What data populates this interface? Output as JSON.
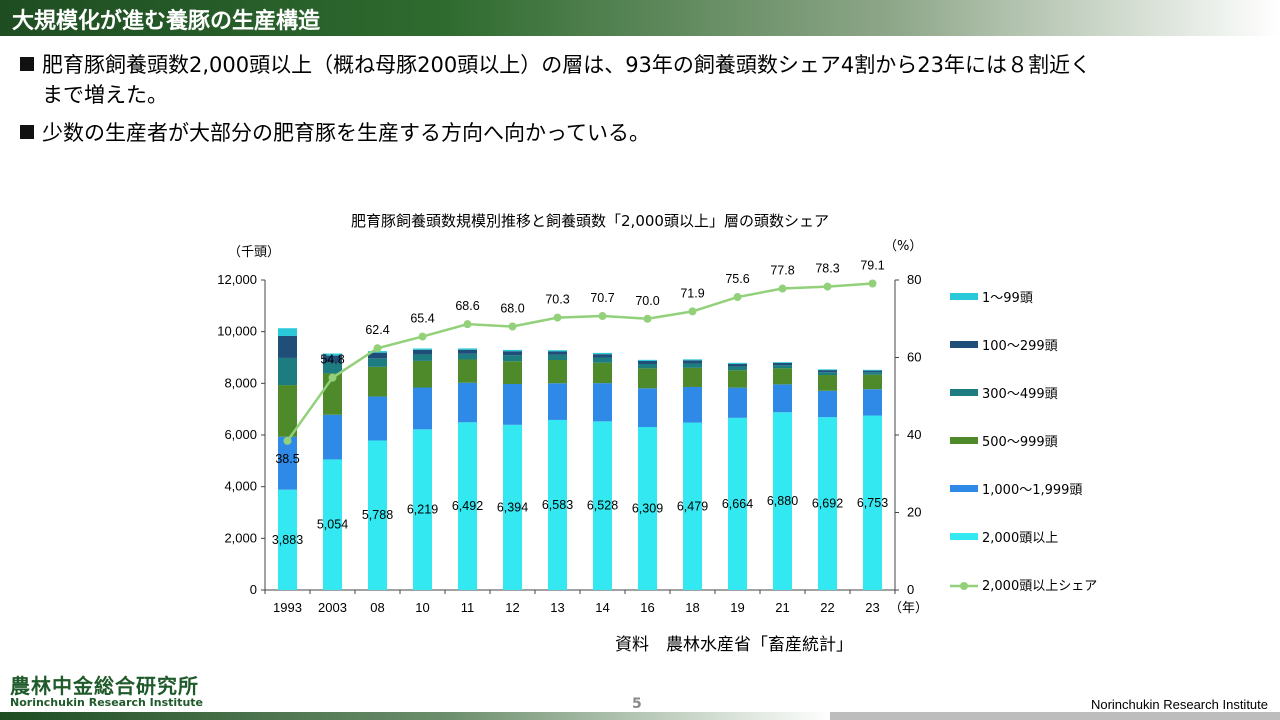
{
  "title": "大規模化が進む養豚の生産構造",
  "bullets": {
    "b1_line1": "肥育豚飼養頭数2,000頭以上（概ね母豚200頭以上）の層は、93年の飼養頭数シェア4割から23年には８割近く",
    "b1_line2": "まで増えた。",
    "b2": "少数の生産者が大部分の肥育豚を生産する方向へ向かっている。"
  },
  "source": "資料　農林水産省「畜産統計」",
  "logo": {
    "jp": "農林中金総合研究所",
    "en": "Norinchukin Research Institute"
  },
  "page_number": "5",
  "footer_en": "Norinchukin Research Institute",
  "colors": {
    "s1_99": "#29c9d9",
    "s100_299": "#1f4e79",
    "s300_499": "#1c7c80",
    "s500_999": "#4e8a2a",
    "s1000_1999": "#2e8ae6",
    "s2000": "#33e8f0",
    "share": "#92d07a"
  },
  "chart_data": {
    "type": "bar",
    "stacked": true,
    "title": "肥育豚飼養頭数規模別推移と飼養頭数「2,000頭以上」層の頭数シェア",
    "y_unit_left": "（千頭）",
    "y_unit_right": "（%）",
    "x_unit": "（年）",
    "categories": [
      "1993",
      "2003",
      "08",
      "10",
      "11",
      "12",
      "13",
      "14",
      "16",
      "18",
      "19",
      "21",
      "22",
      "23"
    ],
    "ylim": [
      0,
      12000
    ],
    "yticks": [
      "0",
      "2,000",
      "4,000",
      "6,000",
      "8,000",
      "10,000",
      "12,000"
    ],
    "ylim_right": [
      0,
      80
    ],
    "yticks_right": [
      "0",
      "20",
      "40",
      "60",
      "80"
    ],
    "series": [
      {
        "name": "2,000頭以上",
        "color_key": "s2000",
        "values": [
          3883,
          5054,
          5788,
          6219,
          6492,
          6394,
          6583,
          6528,
          6309,
          6479,
          6664,
          6880,
          6692,
          6753
        ],
        "labels": [
          "3,883",
          "5,054",
          "5,788",
          "6,219",
          "6,492",
          "6,394",
          "6,583",
          "6,528",
          "6,309",
          "6,479",
          "6,664",
          "6,880",
          "6,692",
          "6,753"
        ]
      },
      {
        "name": "1,000～1,999頭",
        "color_key": "s1000_1999",
        "values": [
          2050,
          1730,
          1700,
          1620,
          1530,
          1580,
          1420,
          1480,
          1500,
          1380,
          1170,
          1080,
          1020,
          1020
        ]
      },
      {
        "name": "500～999頭",
        "color_key": "s500_999",
        "values": [
          2000,
          1600,
          1150,
          1030,
          900,
          880,
          900,
          790,
          770,
          740,
          670,
          620,
          610,
          560
        ]
      },
      {
        "name": "300～499頭",
        "color_key": "s300_499",
        "values": [
          1050,
          420,
          330,
          250,
          220,
          230,
          200,
          200,
          170,
          170,
          150,
          120,
          110,
          100
        ]
      },
      {
        "name": "100～299頭",
        "color_key": "s100_299",
        "values": [
          850,
          270,
          220,
          180,
          160,
          160,
          130,
          130,
          120,
          120,
          100,
          90,
          80,
          60
        ]
      },
      {
        "name": "1～99頭",
        "color_key": "s1_99",
        "values": [
          300,
          80,
          60,
          50,
          50,
          50,
          50,
          50,
          40,
          40,
          40,
          30,
          30,
          30
        ]
      }
    ],
    "line": {
      "name": "2,000頭以上シェア",
      "color_key": "share",
      "axis": "right",
      "values": [
        38.5,
        54.8,
        62.4,
        65.4,
        68.6,
        68.0,
        70.3,
        70.7,
        70.0,
        71.9,
        75.6,
        77.8,
        78.3,
        79.1
      ],
      "labels": [
        "38.5",
        "54.8",
        "62.4",
        "65.4",
        "68.6",
        "68.0",
        "70.3",
        "70.7",
        "70.0",
        "71.9",
        "75.6",
        "77.8",
        "78.3",
        "79.1"
      ]
    },
    "legend": [
      "1～99頭",
      "100～299頭",
      "300～499頭",
      "500～999頭",
      "1,000～1,999頭",
      "2,000頭以上",
      "2,000頭以上シェア"
    ],
    "legend_position": "right"
  }
}
